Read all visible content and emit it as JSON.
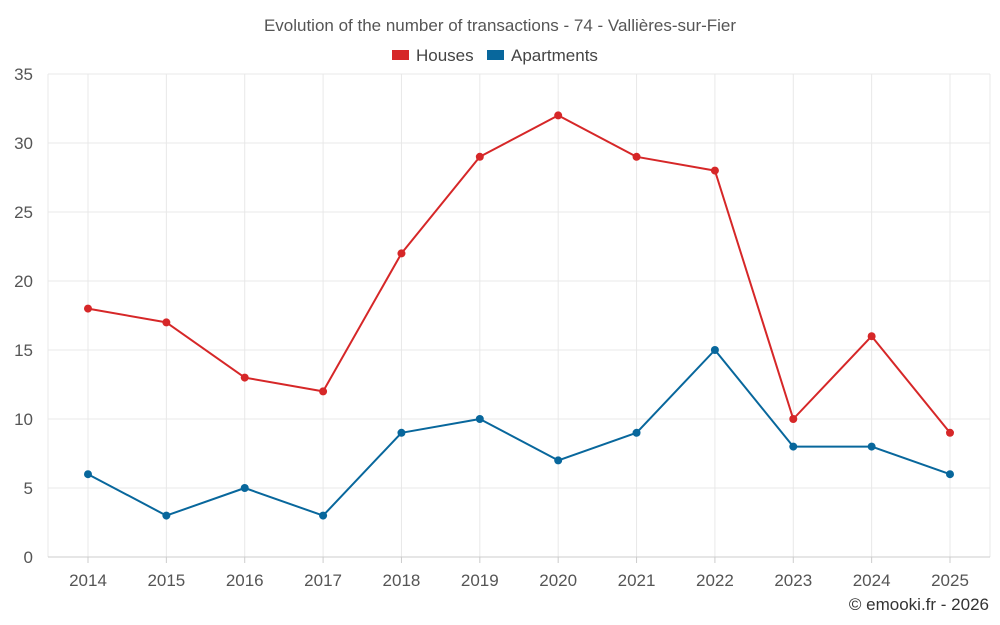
{
  "chart_data": {
    "type": "line",
    "title": "Evolution of the number of transactions - 74 - Vallières-sur-Fier",
    "categories": [
      "2014",
      "2015",
      "2016",
      "2017",
      "2018",
      "2019",
      "2020",
      "2021",
      "2022",
      "2023",
      "2024",
      "2025"
    ],
    "series": [
      {
        "name": "Houses",
        "color": "#d62728",
        "values": [
          18,
          17,
          13,
          12,
          22,
          29,
          32,
          29,
          28,
          10,
          16,
          9
        ]
      },
      {
        "name": "Apartments",
        "color": "#08679c",
        "values": [
          6,
          3,
          5,
          3,
          9,
          10,
          7,
          9,
          15,
          8,
          8,
          6
        ]
      }
    ],
    "ylim": [
      0,
      35
    ],
    "yticks": [
      0,
      5,
      10,
      15,
      20,
      25,
      30,
      35
    ],
    "xlabel": "",
    "ylabel": "",
    "grid": true,
    "legend_position": "top-center"
  },
  "credit": "© emooki.fr - 2026"
}
